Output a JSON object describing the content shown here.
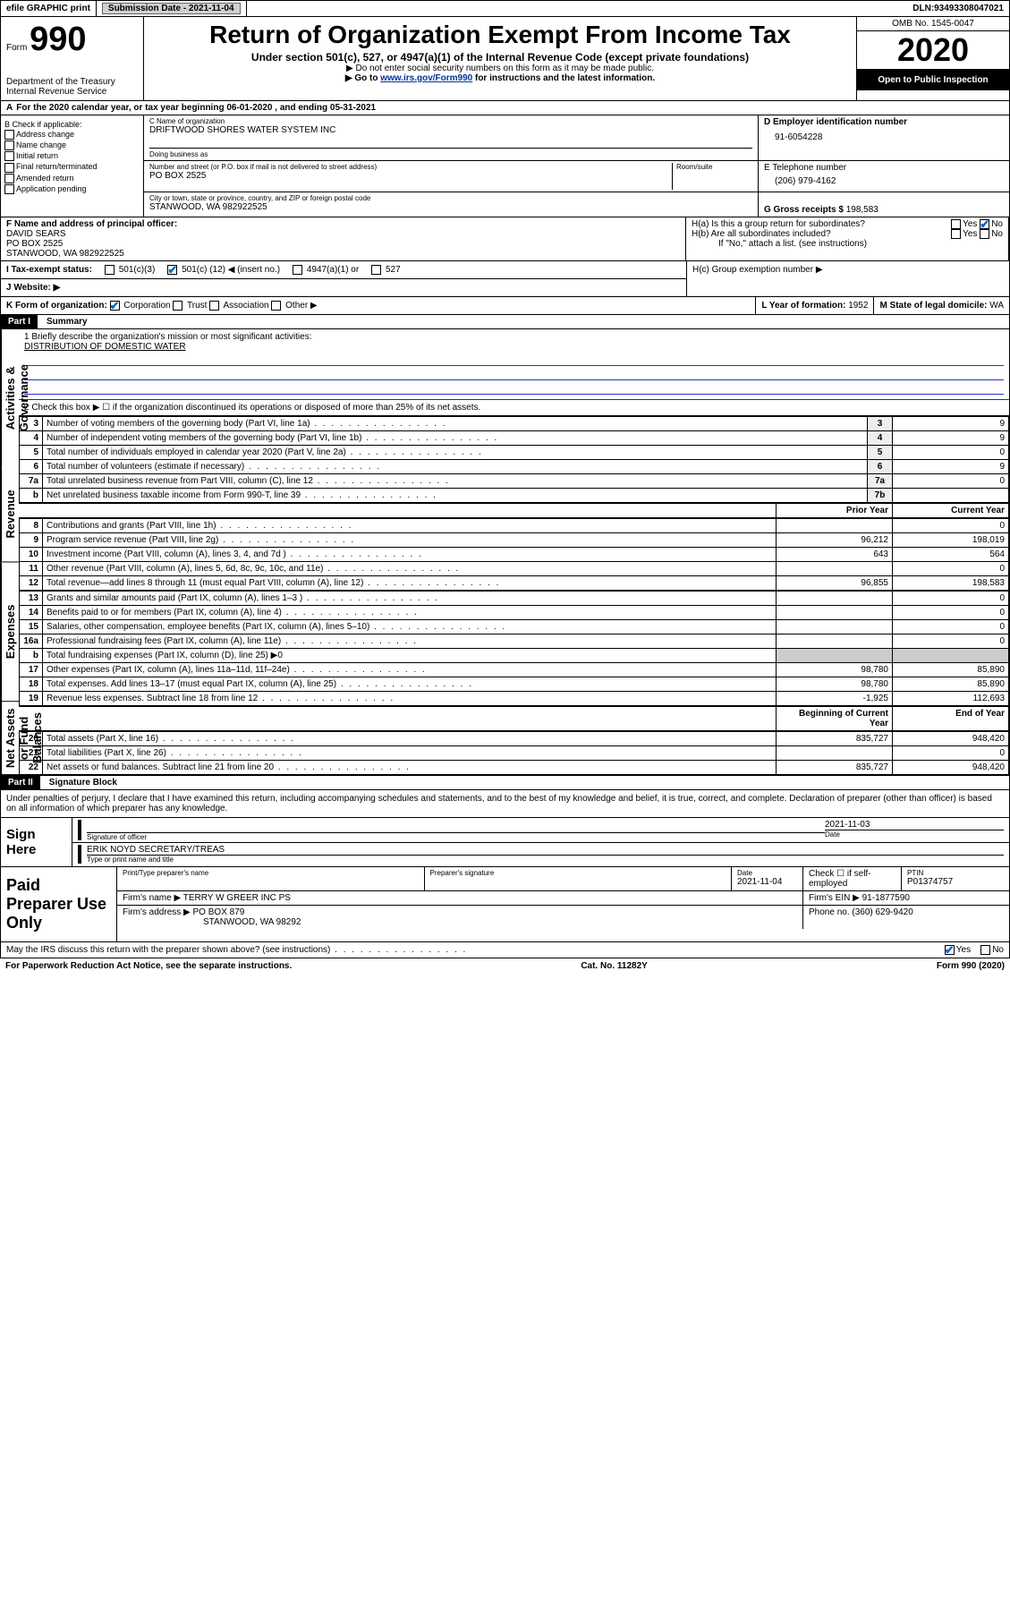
{
  "topbar": {
    "efile": "efile GRAPHIC print",
    "sub_label": "Submission Date - ",
    "sub_date": "2021-11-04",
    "dln_label": "DLN: ",
    "dln": "93493308047021"
  },
  "header": {
    "form_word": "Form",
    "form_num": "990",
    "dept1": "Department of the Treasury",
    "dept2": "Internal Revenue Service",
    "title": "Return of Organization Exempt From Income Tax",
    "subtitle": "Under section 501(c), 527, or 4947(a)(1) of the Internal Revenue Code (except private foundations)",
    "note1": "▶ Do not enter social security numbers on this form as it may be made public.",
    "note2_pre": "▶ Go to ",
    "note2_link": "www.irs.gov/Form990",
    "note2_post": " for instructions and the latest information.",
    "omb": "OMB No. 1545-0047",
    "year": "2020",
    "open": "Open to Public Inspection"
  },
  "rowA": {
    "label": "A",
    "text": "For the 2020 calendar year, or tax year beginning 06-01-2020   , and ending 05-31-2021"
  },
  "colB": {
    "label": "B Check if applicable:",
    "opts": [
      "Address change",
      "Name change",
      "Initial return",
      "Final return/terminated",
      "Amended return",
      "Application pending"
    ]
  },
  "colC": {
    "name_label": "C Name of organization",
    "name": "DRIFTWOOD SHORES WATER SYSTEM INC",
    "dba_label": "Doing business as",
    "addr_label": "Number and street (or P.O. box if mail is not delivered to street address)",
    "room_label": "Room/suite",
    "addr": "PO BOX 2525",
    "city_label": "City or town, state or province, country, and ZIP or foreign postal code",
    "city": "STANWOOD, WA  982922525"
  },
  "colD": {
    "label": "D Employer identification number",
    "val": "91-6054228"
  },
  "colE": {
    "label": "E Telephone number",
    "val": "(206) 979-4162"
  },
  "colG": {
    "label": "G Gross receipts $ ",
    "val": "198,583"
  },
  "colF": {
    "label": "F  Name and address of principal officer:",
    "name": "DAVID SEARS",
    "addr1": "PO BOX 2525",
    "addr2": "STANWOOD, WA  982922525"
  },
  "colH": {
    "a": "H(a)  Is this a group return for subordinates?",
    "b": "H(b)  Are all subordinates included?",
    "note": "If \"No,\" attach a list. (see instructions)",
    "c": "H(c)  Group exemption number ▶",
    "yes": "Yes",
    "no": "No"
  },
  "taxI": {
    "label": "I   Tax-exempt status:",
    "o1": "501(c)(3)",
    "o2_pre": "501(c) (",
    "o2_num": "12",
    "o2_post": ") ◀ (insert no.)",
    "o3": "4947(a)(1) or",
    "o4": "527"
  },
  "rowJ": {
    "label": "J   Website: ▶"
  },
  "rowK": {
    "k": "K Form of organization:",
    "opts": [
      "Corporation",
      "Trust",
      "Association",
      "Other ▶"
    ],
    "l": "L Year of formation: ",
    "l_val": "1952",
    "m": "M State of legal domicile: ",
    "m_val": "WA"
  },
  "part1": {
    "hdr": "Part I",
    "title": "Summary",
    "side_gov": "Activities & Governance",
    "side_rev": "Revenue",
    "side_exp": "Expenses",
    "side_net": "Net Assets or Fund Balances",
    "l1": "1  Briefly describe the organization's mission or most significant activities:",
    "l1_val": "DISTRIBUTION OF DOMESTIC WATER",
    "l2": "2   Check this box ▶ ☐  if the organization discontinued its operations or disposed of more than 25% of its net assets.",
    "lines_gov": [
      {
        "n": "3",
        "t": "Number of voting members of the governing body (Part VI, line 1a)",
        "b": "3",
        "v": "9"
      },
      {
        "n": "4",
        "t": "Number of independent voting members of the governing body (Part VI, line 1b)",
        "b": "4",
        "v": "9"
      },
      {
        "n": "5",
        "t": "Total number of individuals employed in calendar year 2020 (Part V, line 2a)",
        "b": "5",
        "v": "0"
      },
      {
        "n": "6",
        "t": "Total number of volunteers (estimate if necessary)",
        "b": "6",
        "v": "9"
      },
      {
        "n": "7a",
        "t": "Total unrelated business revenue from Part VIII, column (C), line 12",
        "b": "7a",
        "v": "0"
      },
      {
        "n": "b",
        "t": "Net unrelated business taxable income from Form 990-T, line 39",
        "b": "7b",
        "v": ""
      }
    ],
    "col_prior": "Prior Year",
    "col_curr": "Current Year",
    "lines_rev": [
      {
        "n": "8",
        "t": "Contributions and grants (Part VIII, line 1h)",
        "p": "",
        "c": "0"
      },
      {
        "n": "9",
        "t": "Program service revenue (Part VIII, line 2g)",
        "p": "96,212",
        "c": "198,019"
      },
      {
        "n": "10",
        "t": "Investment income (Part VIII, column (A), lines 3, 4, and 7d )",
        "p": "643",
        "c": "564"
      },
      {
        "n": "11",
        "t": "Other revenue (Part VIII, column (A), lines 5, 6d, 8c, 9c, 10c, and 11e)",
        "p": "",
        "c": "0"
      },
      {
        "n": "12",
        "t": "Total revenue—add lines 8 through 11 (must equal Part VIII, column (A), line 12)",
        "p": "96,855",
        "c": "198,583"
      }
    ],
    "lines_exp": [
      {
        "n": "13",
        "t": "Grants and similar amounts paid (Part IX, column (A), lines 1–3 )",
        "p": "",
        "c": "0"
      },
      {
        "n": "14",
        "t": "Benefits paid to or for members (Part IX, column (A), line 4)",
        "p": "",
        "c": "0"
      },
      {
        "n": "15",
        "t": "Salaries, other compensation, employee benefits (Part IX, column (A), lines 5–10)",
        "p": "",
        "c": "0"
      },
      {
        "n": "16a",
        "t": "Professional fundraising fees (Part IX, column (A), line 11e)",
        "p": "",
        "c": "0"
      },
      {
        "n": "b",
        "t": "Total fundraising expenses (Part IX, column (D), line 25) ▶0",
        "p": null,
        "c": null
      },
      {
        "n": "17",
        "t": "Other expenses (Part IX, column (A), lines 11a–11d, 11f–24e)",
        "p": "98,780",
        "c": "85,890"
      },
      {
        "n": "18",
        "t": "Total expenses. Add lines 13–17 (must equal Part IX, column (A), line 25)",
        "p": "98,780",
        "c": "85,890"
      },
      {
        "n": "19",
        "t": "Revenue less expenses. Subtract line 18 from line 12",
        "p": "-1,925",
        "c": "112,693"
      }
    ],
    "col_begin": "Beginning of Current Year",
    "col_end": "End of Year",
    "lines_net": [
      {
        "n": "20",
        "t": "Total assets (Part X, line 16)",
        "p": "835,727",
        "c": "948,420"
      },
      {
        "n": "21",
        "t": "Total liabilities (Part X, line 26)",
        "p": "",
        "c": "0"
      },
      {
        "n": "22",
        "t": "Net assets or fund balances. Subtract line 21 from line 20",
        "p": "835,727",
        "c": "948,420"
      }
    ]
  },
  "part2": {
    "hdr": "Part II",
    "title": "Signature Block",
    "perjury": "Under penalties of perjury, I declare that I have examined this return, including accompanying schedules and statements, and to the best of my knowledge and belief, it is true, correct, and complete. Declaration of preparer (other than officer) is based on all information of which preparer has any knowledge.",
    "sign_here": "Sign Here",
    "sig_officer": "Signature of officer",
    "date_lbl": "Date",
    "sig_date": "2021-11-03",
    "name_title": "ERIK NOYD  SECRETARY/TREAS",
    "type_lbl": "Type or print name and title",
    "paid": "Paid Preparer Use Only",
    "pp_name_lbl": "Print/Type preparer's name",
    "pp_sig_lbl": "Preparer's signature",
    "pp_date_lbl": "Date",
    "pp_date": "2021-11-04",
    "pp_self": "Check ☐ if self-employed",
    "ptin_lbl": "PTIN",
    "ptin": "P01374757",
    "firm_name_lbl": "Firm's name    ▶ ",
    "firm_name": "TERRY W GREER INC PS",
    "firm_ein_lbl": "Firm's EIN ▶ ",
    "firm_ein": "91-1877590",
    "firm_addr_lbl": "Firm's address ▶ ",
    "firm_addr1": "PO BOX 879",
    "firm_addr2": "STANWOOD, WA  98292",
    "phone_lbl": "Phone no. ",
    "phone": "(360) 629-9420",
    "may_irs": "May the IRS discuss this return with the preparer shown above? (see instructions)",
    "yes": "Yes",
    "no": "No"
  },
  "footer": {
    "pra": "For Paperwork Reduction Act Notice, see the separate instructions.",
    "cat": "Cat. No. 11282Y",
    "form": "Form 990 (2020)"
  }
}
